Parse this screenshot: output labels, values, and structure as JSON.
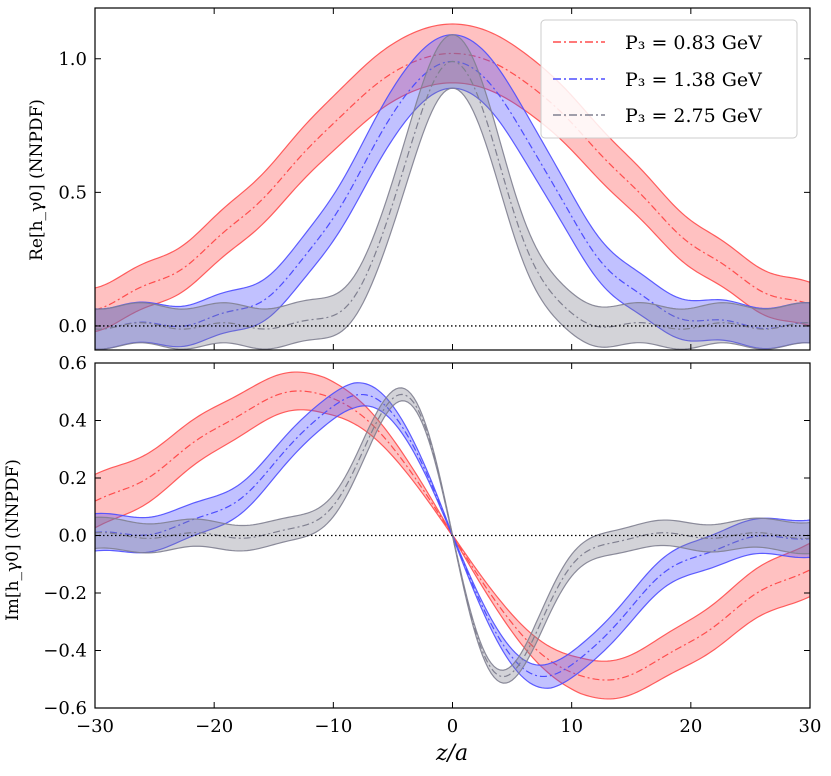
{
  "chart_data": {
    "type": "line",
    "xlabel": "z/a",
    "xlim": [
      -30,
      30
    ],
    "xticks": [
      -30,
      -20,
      -10,
      0,
      10,
      20,
      30
    ],
    "xtick_labels": [
      "−30",
      "−20",
      "−10",
      "0",
      "10",
      "20",
      "30"
    ],
    "legend": {
      "placement": "top-right",
      "entries": [
        {
          "label": "P₃ = 0.83 GeV",
          "color": "#ff4d4d"
        },
        {
          "label": "P₃ = 1.38 GeV",
          "color": "#4d4dff"
        },
        {
          "label": "P₃ = 2.75 GeV",
          "color": "#808090"
        }
      ]
    },
    "panels": [
      {
        "name": "real",
        "ylabel": "Re[h_γ0] (NNPDF)",
        "ylim": [
          -0.09,
          1.19
        ],
        "yticks": [
          0.0,
          0.5,
          1.0
        ],
        "ytick_labels": [
          "0.0",
          "0.5",
          "1.0"
        ],
        "zero_line": true,
        "series": [
          {
            "name": "P₃ = 0.83 GeV",
            "color": "#ff4d4d",
            "kind": "re",
            "width": 13.0,
            "center_amp": 1.02,
            "halfband": 0.11,
            "lowtail": -0.07,
            "hightail": 0.09
          },
          {
            "name": "P₃ = 1.38 GeV",
            "color": "#4d4dff",
            "kind": "re",
            "width": 7.5,
            "center_amp": 0.99,
            "halfband": 0.1,
            "lowtail": -0.05,
            "hightail": 0.05
          },
          {
            "name": "P₃ = 2.75 GeV",
            "color": "#808090",
            "kind": "re",
            "width": 4.0,
            "center_amp": 0.99,
            "halfband": 0.1,
            "lowtail": -0.05,
            "hightail": 0.05
          }
        ]
      },
      {
        "name": "imag",
        "ylabel": "Im[h_γ0] (NNPDF)",
        "ylim": [
          -0.6,
          0.6
        ],
        "yticks": [
          -0.6,
          -0.4,
          -0.2,
          0.0,
          0.2,
          0.4,
          0.6
        ],
        "ytick_labels": [
          "−0.6",
          "−0.4",
          "−0.2",
          "0.0",
          "0.2",
          "0.4",
          "0.6"
        ],
        "zero_line": true,
        "series": [
          {
            "name": "P₃ = 0.83 GeV",
            "color": "#ff4d4d",
            "kind": "im",
            "width": 12.5,
            "peak": 0.5,
            "halfband": 0.045,
            "endband": 0.08
          },
          {
            "name": "P₃ = 1.38 GeV",
            "color": "#4d4dff",
            "kind": "im",
            "width": 7.8,
            "peak": 0.49,
            "halfband": 0.035,
            "endband": 0.05
          },
          {
            "name": "P₃ = 2.75 GeV",
            "color": "#808090",
            "kind": "im",
            "width": 4.2,
            "peak": 0.49,
            "halfband": 0.03,
            "endband": 0.04
          }
        ]
      }
    ]
  }
}
